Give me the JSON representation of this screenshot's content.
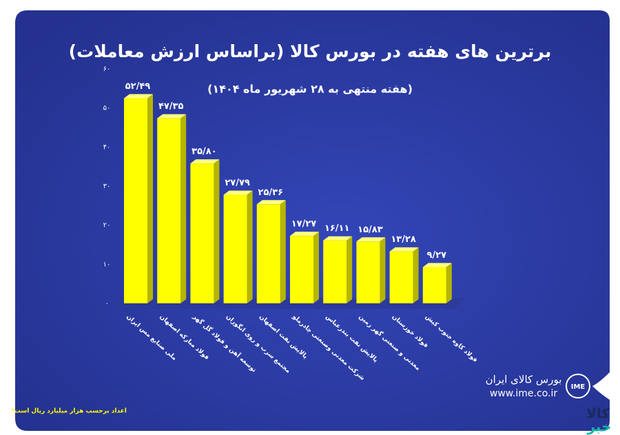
{
  "chart_data": {
    "type": "bar",
    "title": "برترین های هفته در بورس کالا (براساس ارزش معاملات)",
    "subtitle": "(هفته منتهی به ۲۸ شهریور ماه ۱۴۰۴)",
    "categories": [
      "ملی صنایع مس ایران",
      "فولاد مبارکه اصفهان",
      "توسعه آهن و فولاد گل گهر",
      "مجتمع سرب و روی انگوران",
      "پالایش نفت اصفهان",
      "شرکت معدنی وصنعتی چادرملو",
      "پالایش نفت بندرعباس",
      "معدنی و صنعتی گهر زمین",
      "فولاد خوزستان",
      "فولاد کاوه جنوب کیش"
    ],
    "values": [
      52.49,
      47.35,
      35.8,
      27.79,
      25.36,
      17.27,
      16.11,
      15.83,
      13.28,
      9.27
    ],
    "value_labels": [
      "۵۲/۴۹",
      "۴۷/۳۵",
      "۳۵/۸۰",
      "۲۷/۷۹",
      "۲۵/۳۶",
      "۱۷/۲۷",
      "۱۶/۱۱",
      "۱۵/۸۳",
      "۱۳/۲۸",
      "۹/۲۷"
    ],
    "color": "#ffff00",
    "ylim": [
      0,
      60
    ],
    "yticks": [
      {
        "value": 0,
        "label": "۰"
      },
      {
        "value": 10,
        "label": "۱۰"
      },
      {
        "value": 20,
        "label": "۲۰"
      },
      {
        "value": 30,
        "label": "۳۰"
      },
      {
        "value": 40,
        "label": "۴۰"
      },
      {
        "value": 50,
        "label": "۵۰"
      },
      {
        "value": 60,
        "label": "۶۰"
      }
    ],
    "footnote": "*اعداد برحسب هزار میلیارد ریال است"
  },
  "brand": {
    "name": "بورس کالای ایران",
    "url": "www.ime.co.ir",
    "logo": "IME",
    "watermark_top": "کالا",
    "watermark_bottom": "خبر"
  }
}
